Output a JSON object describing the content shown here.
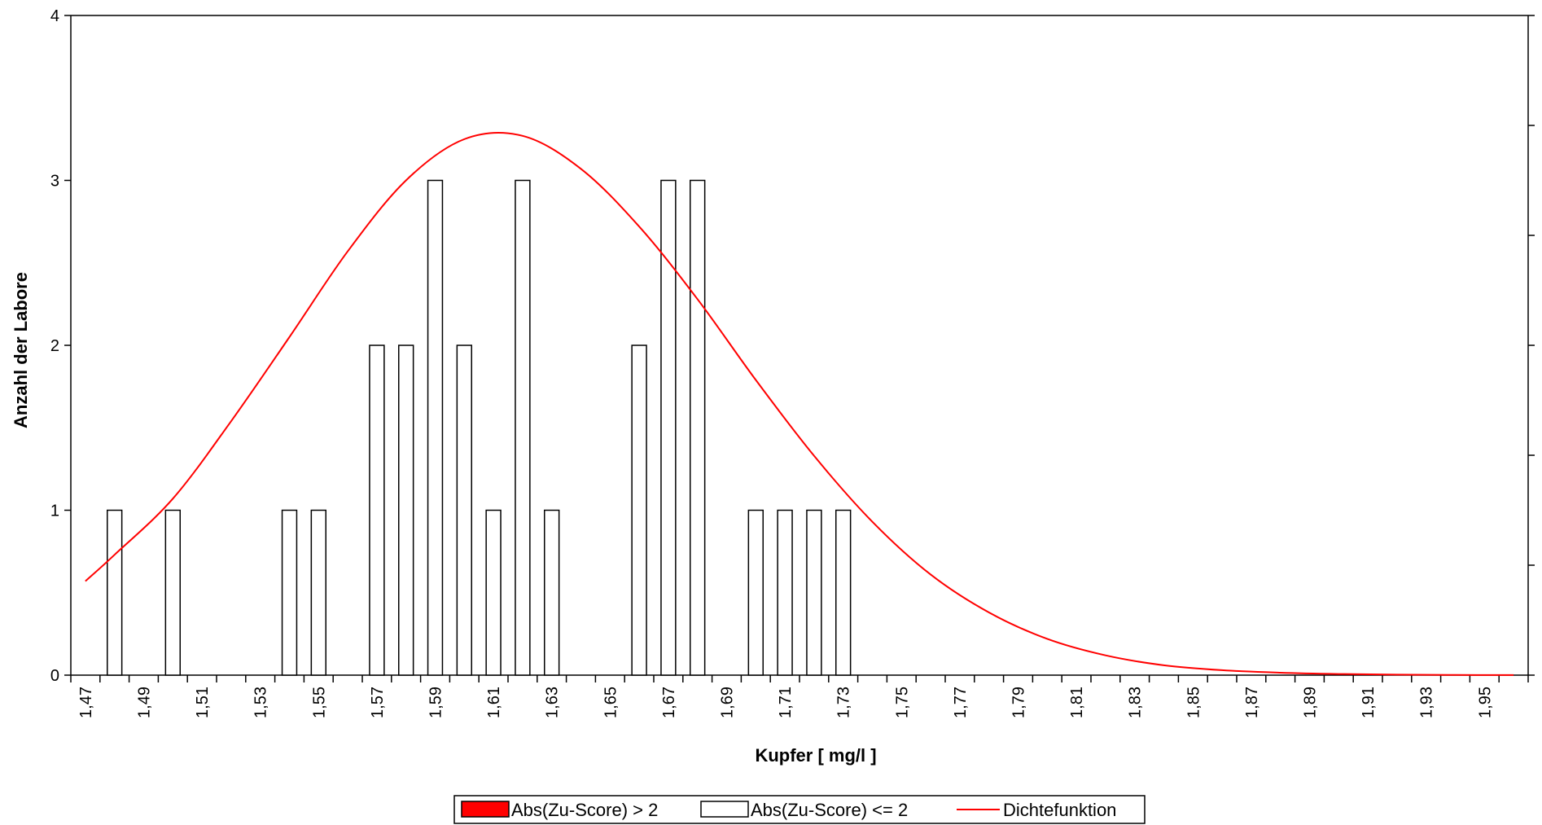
{
  "chart_data": {
    "type": "bar",
    "title": "",
    "xlabel": "Kupfer [ mg/l ]",
    "ylabel": "Anzahl der Labore",
    "ylim": [
      0,
      4
    ],
    "yticks": [
      "0",
      "1",
      "2",
      "3",
      "4"
    ],
    "xlim": [
      1.465,
      1.965
    ],
    "bin_width": 0.01,
    "x_tick_labels": [
      "1,47",
      "1,49",
      "1,51",
      "1,53",
      "1,55",
      "1,57",
      "1,59",
      "1,61",
      "1,63",
      "1,65",
      "1,67",
      "1,69",
      "1,71",
      "1,73",
      "1,75",
      "1,77",
      "1,79",
      "1,81",
      "1,83",
      "1,85",
      "1,87",
      "1,89",
      "1,91",
      "1,93",
      "1,95"
    ],
    "series": [
      {
        "name": "Abs(Zu-Score) > 2",
        "color": "#ff0000",
        "x": [],
        "values": []
      },
      {
        "name": "Abs(Zu-Score) <= 2",
        "color": "#ffffff",
        "x": [
          1.48,
          1.5,
          1.54,
          1.55,
          1.57,
          1.58,
          1.59,
          1.6,
          1.61,
          1.62,
          1.63,
          1.66,
          1.67,
          1.68,
          1.7,
          1.71,
          1.72,
          1.73
        ],
        "values": [
          1,
          1,
          1,
          1,
          2,
          2,
          3,
          2,
          1,
          3,
          1,
          2,
          3,
          3,
          1,
          1,
          1,
          1
        ]
      },
      {
        "name": "Dichtefunktion",
        "type": "line",
        "color": "#ff0000",
        "x": [
          1.47,
          1.48,
          1.5,
          1.52,
          1.54,
          1.56,
          1.58,
          1.6,
          1.62,
          1.64,
          1.66,
          1.68,
          1.7,
          1.72,
          1.74,
          1.76,
          1.78,
          1.8,
          1.82,
          1.84,
          1.86,
          1.88,
          1.9,
          1.92,
          1.94,
          1.96
        ],
        "values": [
          0.57,
          0.73,
          1.07,
          1.54,
          2.05,
          2.57,
          3.0,
          3.25,
          3.27,
          3.07,
          2.72,
          2.28,
          1.79,
          1.33,
          0.93,
          0.61,
          0.38,
          0.22,
          0.12,
          0.06,
          0.03,
          0.015,
          0.007,
          0.003,
          0.001,
          0.0005
        ]
      }
    ],
    "legend": {
      "placement": "bottom-center",
      "entries": [
        "Abs(Zu-Score) > 2",
        "Abs(Zu-Score) <= 2",
        "Dichtefunktion"
      ]
    },
    "grid": false
  }
}
